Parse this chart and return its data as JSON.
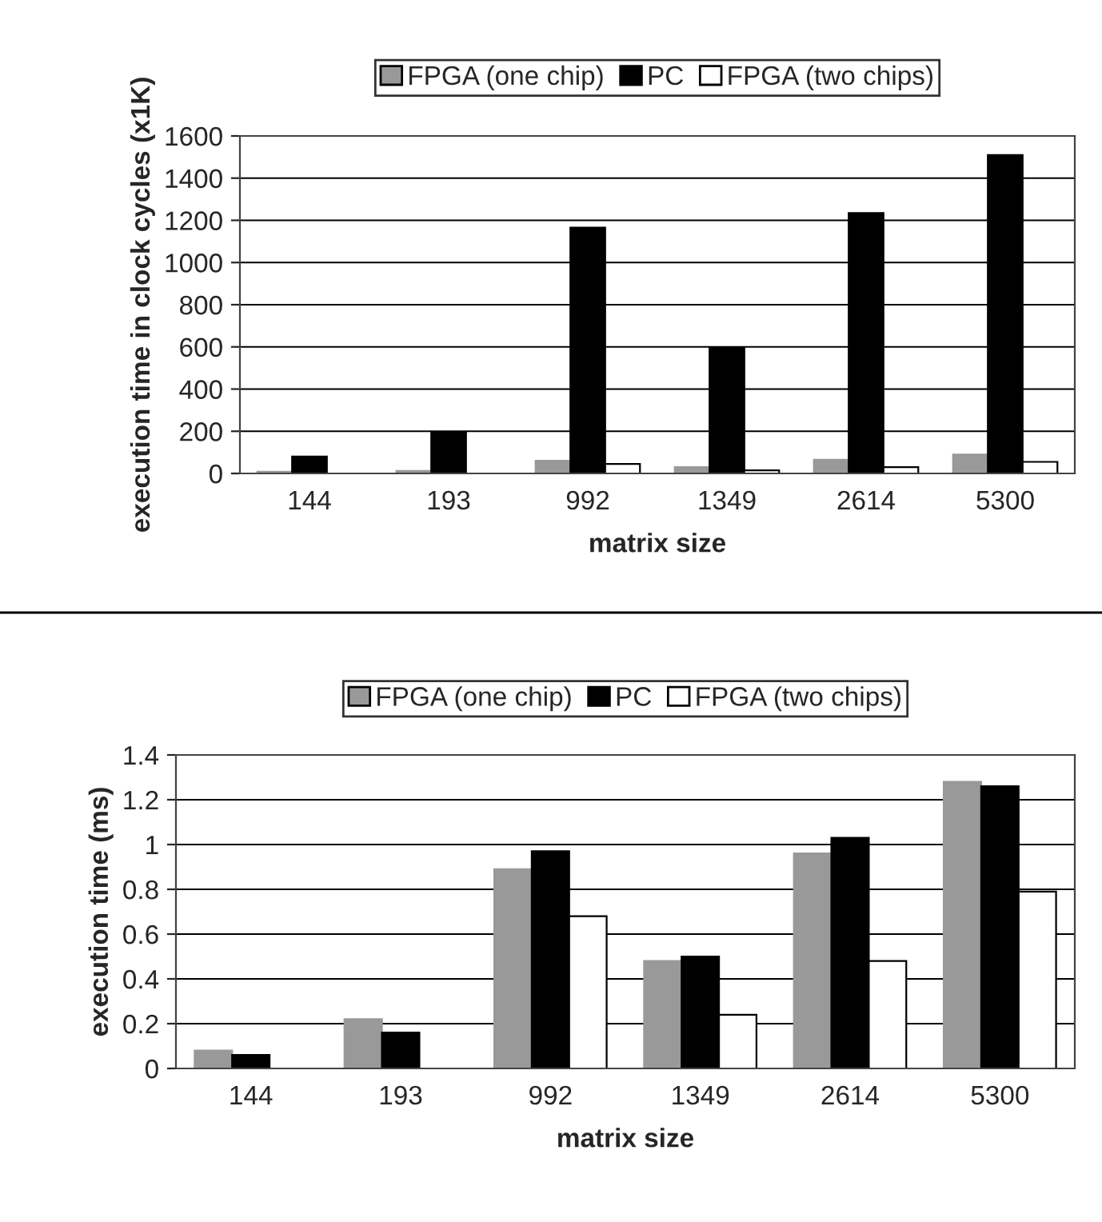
{
  "chart_data": [
    {
      "type": "bar",
      "xlabel": "matrix size",
      "ylabel": "execution time in clock cycles (x1K)",
      "categories": [
        "144",
        "193",
        "992",
        "1349",
        "2614",
        "5300"
      ],
      "series": [
        {
          "name": "FPGA (one chip)",
          "color": "#999999",
          "values": [
            8,
            12,
            60,
            30,
            65,
            90
          ]
        },
        {
          "name": "PC",
          "color": "#000000",
          "values": [
            80,
            195,
            1165,
            595,
            1235,
            1510
          ]
        },
        {
          "name": "FPGA (two chips)",
          "color": "#ffffff",
          "values": [
            0,
            0,
            45,
            15,
            30,
            55
          ]
        }
      ],
      "ylim": [
        0,
        1600
      ],
      "yticks": [
        0,
        200,
        400,
        600,
        800,
        1000,
        1200,
        1400,
        1600
      ],
      "grid": "y",
      "legend": "top"
    },
    {
      "type": "bar",
      "xlabel": "matrix size",
      "ylabel": "execution time (ms)",
      "categories": [
        "144",
        "193",
        "992",
        "1349",
        "2614",
        "5300"
      ],
      "series": [
        {
          "name": "FPGA (one chip)",
          "color": "#999999",
          "values": [
            0.08,
            0.22,
            0.89,
            0.48,
            0.96,
            1.28
          ]
        },
        {
          "name": "PC",
          "color": "#000000",
          "values": [
            0.06,
            0.16,
            0.97,
            0.5,
            1.03,
            1.26
          ]
        },
        {
          "name": "FPGA (two chips)",
          "color": "#ffffff",
          "values": [
            0,
            0,
            0.68,
            0.24,
            0.48,
            0.79
          ]
        }
      ],
      "ylim": [
        0,
        1.4
      ],
      "yticks": [
        0,
        {
          "value": 0.2,
          "label": "0.2"
        },
        {
          "value": 0.4,
          "label": "0.4"
        },
        {
          "value": 0.6,
          "label": "0.6"
        },
        {
          "value": 0.8,
          "label": "0.8"
        },
        1,
        {
          "value": 1.2,
          "label": "1.2"
        },
        {
          "value": 1.4,
          "label": "1.4"
        }
      ],
      "grid": "y",
      "legend": "top"
    }
  ]
}
